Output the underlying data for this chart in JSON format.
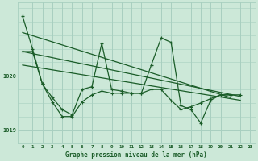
{
  "title": "Graphe pression niveau de la mer (hPa)",
  "bg_color": "#cce8d8",
  "grid_color": "#a8cfc0",
  "line_color": "#1a5c28",
  "x_ticks": [
    0,
    1,
    2,
    3,
    4,
    5,
    6,
    7,
    8,
    9,
    10,
    11,
    12,
    13,
    14,
    15,
    16,
    17,
    18,
    19,
    20,
    21,
    22,
    23
  ],
  "y_ticks": [
    1019,
    1020
  ],
  "ylim": [
    1018.75,
    1021.35
  ],
  "xlim": [
    -0.5,
    23.5
  ],
  "series1": [
    1021.1,
    1020.5,
    1019.85,
    1019.6,
    1019.38,
    1019.28,
    1019.75,
    1019.8,
    1020.6,
    1019.75,
    1019.72,
    1019.68,
    1019.68,
    1020.2,
    1020.7,
    1020.62,
    1019.45,
    1019.38,
    1019.13,
    1019.55,
    1019.65,
    1019.65,
    null,
    null
  ],
  "series1_x": [
    0,
    1,
    2,
    3,
    4,
    5,
    6,
    7,
    8,
    9,
    10,
    11,
    12,
    13,
    14,
    15,
    16,
    17,
    18,
    19,
    20,
    21
  ],
  "series2": [
    1020.45,
    1020.45,
    1019.85,
    1019.52,
    1019.25,
    1019.25,
    1019.52,
    1019.65,
    1019.72,
    1019.68,
    1019.68,
    1019.68,
    1019.68,
    1019.75,
    1019.75,
    1019.55,
    1019.38,
    1019.43,
    1019.5,
    1019.58,
    1019.65,
    1019.65,
    1019.65,
    null
  ],
  "series2_x": [
    0,
    1,
    2,
    3,
    4,
    5,
    6,
    7,
    8,
    9,
    10,
    11,
    12,
    13,
    14,
    15,
    16,
    17,
    18,
    19,
    20,
    21,
    22
  ],
  "trend1_x": [
    0,
    21
  ],
  "trend1_y": [
    1020.8,
    1019.6
  ],
  "trend2_x": [
    0,
    22
  ],
  "trend2_y": [
    1020.45,
    1019.62
  ],
  "trend3_x": [
    0,
    22
  ],
  "trend3_y": [
    1020.2,
    1019.55
  ]
}
